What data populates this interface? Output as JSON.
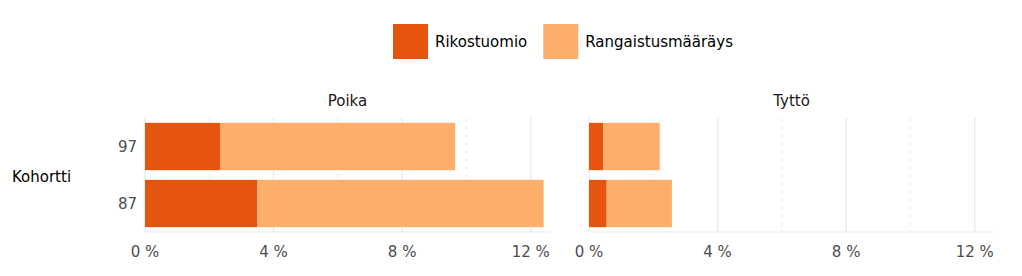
{
  "chart_data": [
    {
      "type": "bar",
      "orientation": "horizontal",
      "stacked": true,
      "grid": true,
      "legend": "top",
      "title": "Poika",
      "y_label": "Kohortti",
      "categories": [
        "97",
        "87"
      ],
      "series": [
        {
          "name": "Rikostuomio",
          "color": "#e6550d",
          "values": [
            2.35,
            3.5
          ]
        },
        {
          "name": "Rangaistusmääräys",
          "color": "#fdae6b",
          "values": [
            7.3,
            8.9
          ]
        }
      ],
      "xlim": [
        0,
        12.6
      ],
      "xticks": [
        {
          "value": 0,
          "label": "0 %"
        },
        {
          "value": 4,
          "label": "4 %"
        },
        {
          "value": 8,
          "label": "8 %"
        },
        {
          "value": 12,
          "label": "12 %"
        }
      ]
    },
    {
      "type": "bar",
      "orientation": "horizontal",
      "stacked": true,
      "grid": true,
      "tick_labels": "x",
      "title": "Tyttö",
      "categories": [
        "97",
        "87"
      ],
      "series": [
        {
          "name": "Rikostuomio",
          "color": "#e6550d",
          "values": [
            0.44,
            0.55
          ]
        },
        {
          "name": "Rangaistusmääräys",
          "color": "#fdae6b",
          "values": [
            1.76,
            2.03
          ]
        }
      ],
      "xlim": [
        0,
        12.6
      ],
      "xticks": [
        {
          "value": 0,
          "label": "0 %"
        },
        {
          "value": 4,
          "label": "4 %"
        },
        {
          "value": 8,
          "label": "8 %"
        },
        {
          "value": 12,
          "label": "12 %"
        }
      ]
    }
  ]
}
